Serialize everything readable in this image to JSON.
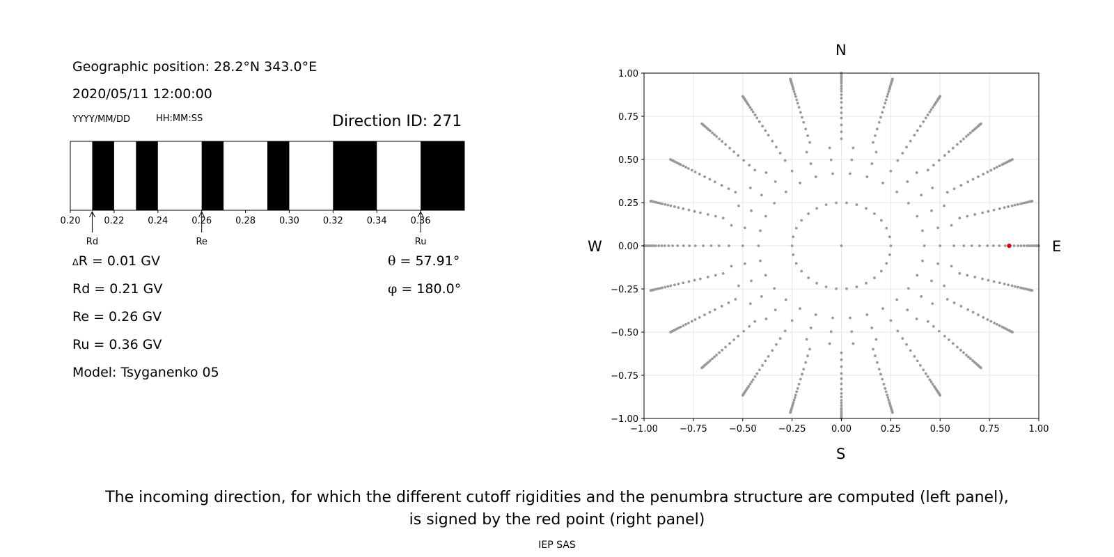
{
  "header": {
    "geo": "Geographic position: 28.2°N 343.0°E",
    "datetime": "2020/05/11 12:00:00",
    "date_format": "YYYY/MM/DD",
    "time_format": "HH:MM:SS",
    "direction_id": "Direction ID: 271"
  },
  "values": {
    "delta_r_symbol": "∆",
    "delta_r": "R = 0.01 GV",
    "rd": "Rd = 0.21 GV",
    "re": "Re = 0.26 GV",
    "ru": "Ru = 0.36 GV",
    "model": "Model: Tsyganenko 05",
    "theta_symbol": "θ",
    "theta": " = 57.91°",
    "phi_symbol": "φ",
    "phi": " = 180.0°"
  },
  "compass": {
    "north": "N",
    "south": "S",
    "west": "W",
    "east": "E"
  },
  "caption": {
    "line1": "The incoming direction, for which the different cutoff rigidities and the penumbra structure are computed (left panel),",
    "line2": "is signed by the red point (right panel)",
    "footer": "IEP SAS"
  },
  "chart_data": [
    {
      "type": "bar",
      "xlim": [
        0.2,
        0.38
      ],
      "xticks": [
        "0.20",
        "0.22",
        "0.24",
        "0.26",
        "0.28",
        "0.30",
        "0.32",
        "0.34",
        "0.36"
      ],
      "allowed_color": "#ffffff",
      "forbidden_color": "#000000",
      "forbidden_bands": [
        [
          0.21,
          0.22
        ],
        [
          0.23,
          0.24
        ],
        [
          0.26,
          0.27
        ],
        [
          0.29,
          0.3
        ],
        [
          0.32,
          0.34
        ],
        [
          0.36,
          0.38
        ]
      ],
      "markers": [
        {
          "label": "Rd",
          "x": 0.21
        },
        {
          "label": "Re",
          "x": 0.26
        },
        {
          "label": "Ru",
          "x": 0.36
        }
      ]
    },
    {
      "type": "scatter",
      "xlim": [
        -1.0,
        1.0
      ],
      "ylim": [
        -1.0,
        1.0
      ],
      "xticks": [
        "−1.00",
        "−0.75",
        "−0.50",
        "−0.25",
        "0.00",
        "0.25",
        "0.50",
        "0.75",
        "1.00"
      ],
      "yticks": [
        "−1.00",
        "−0.75",
        "−0.50",
        "−0.25",
        "0.00",
        "0.25",
        "0.50",
        "0.75",
        "1.00"
      ],
      "grid": true,
      "point_color": "#999999",
      "highlight_color": "#e8000b",
      "rings": [
        {
          "r": 0.0,
          "n": 1
        },
        {
          "r": 0.25,
          "n": 30
        },
        {
          "r": 0.42,
          "n": 30
        },
        {
          "r": 0.5,
          "n": 30
        },
        {
          "r": 0.57,
          "n": 30
        },
        {
          "r": 0.62,
          "n": 24
        },
        {
          "r": 0.66,
          "n": 24
        },
        {
          "r": 0.7,
          "n": 24
        },
        {
          "r": 0.74,
          "n": 24
        },
        {
          "r": 0.77,
          "n": 24
        },
        {
          "r": 0.8,
          "n": 24
        },
        {
          "r": 0.83,
          "n": 24
        },
        {
          "r": 0.855,
          "n": 24
        },
        {
          "r": 0.875,
          "n": 24
        },
        {
          "r": 0.895,
          "n": 24
        },
        {
          "r": 0.91,
          "n": 24
        },
        {
          "r": 0.925,
          "n": 24
        },
        {
          "r": 0.94,
          "n": 24
        },
        {
          "r": 0.95,
          "n": 24
        },
        {
          "r": 0.96,
          "n": 24
        },
        {
          "r": 0.97,
          "n": 24
        },
        {
          "r": 0.978,
          "n": 24
        },
        {
          "r": 0.985,
          "n": 24
        },
        {
          "r": 0.99,
          "n": 24
        },
        {
          "r": 0.995,
          "n": 24
        },
        {
          "r": 1.0,
          "n": 24
        }
      ],
      "highlight": {
        "x": 0.85,
        "y": 0.0
      }
    }
  ]
}
